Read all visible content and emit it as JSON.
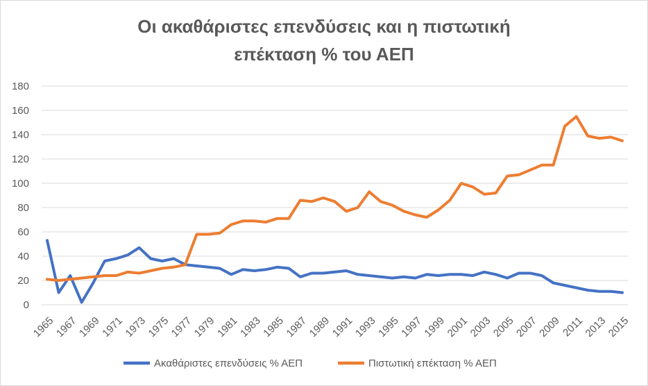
{
  "title_line1": "Οι ακαθάριστες επενδύσεις και η πιστωτική",
  "title_line2": "επέκταση % του ΑΕΠ",
  "chart_data": {
    "type": "line",
    "title": "Οι ακαθάριστες επενδύσεις και η πιστωτική επέκταση % του ΑΕΠ",
    "xlabel": "",
    "ylabel": "",
    "ylim": [
      0,
      180
    ],
    "yticks": [
      0,
      20,
      40,
      60,
      80,
      100,
      120,
      140,
      160,
      180
    ],
    "grid": true,
    "legend_position": "bottom",
    "x": [
      1965,
      1966,
      1967,
      1968,
      1969,
      1970,
      1971,
      1972,
      1973,
      1974,
      1975,
      1976,
      1977,
      1978,
      1979,
      1980,
      1981,
      1982,
      1983,
      1984,
      1985,
      1986,
      1987,
      1988,
      1989,
      1990,
      1991,
      1992,
      1993,
      1994,
      1995,
      1996,
      1997,
      1998,
      1999,
      2000,
      2001,
      2002,
      2003,
      2004,
      2005,
      2006,
      2007,
      2008,
      2009,
      2010,
      2011,
      2012,
      2013,
      2014,
      2015
    ],
    "xtick_labels": [
      "1965",
      "1967",
      "1969",
      "1971",
      "1973",
      "1975",
      "1977",
      "1979",
      "1981",
      "1983",
      "1985",
      "1987",
      "1989",
      "1991",
      "1993",
      "1995",
      "1997",
      "1999",
      "2001",
      "2003",
      "2005",
      "2007",
      "2009",
      "2011",
      "2013",
      "2015"
    ],
    "series": [
      {
        "name": "Ακαθάριστες επενδύσεις % ΑΕΠ",
        "color": "#4472c4",
        "values": [
          53,
          10,
          24,
          2,
          18,
          36,
          38,
          41,
          47,
          38,
          36,
          38,
          33,
          32,
          31,
          30,
          25,
          29,
          28,
          29,
          31,
          30,
          23,
          26,
          26,
          27,
          28,
          25,
          24,
          23,
          22,
          23,
          22,
          25,
          24,
          25,
          25,
          24,
          27,
          25,
          22,
          26,
          26,
          24,
          18,
          16,
          14,
          12,
          11,
          11,
          10
        ]
      },
      {
        "name": "Πιστωτική επέκταση % ΑΕΠ",
        "color": "#ed7d31",
        "values": [
          21,
          20,
          21,
          22,
          23,
          24,
          24,
          27,
          26,
          28,
          30,
          31,
          33,
          58,
          58,
          59,
          66,
          69,
          69,
          68,
          71,
          71,
          86,
          85,
          88,
          85,
          77,
          80,
          93,
          85,
          82,
          77,
          74,
          72,
          78,
          86,
          100,
          97,
          91,
          92,
          106,
          107,
          111,
          115,
          115,
          147,
          155,
          139,
          137,
          138,
          135
        ]
      }
    ]
  }
}
